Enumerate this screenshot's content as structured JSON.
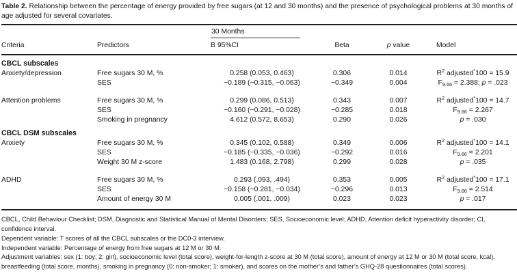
{
  "title": {
    "label": "Table 2.",
    "text": "Relationship between the percentage of energy provided by free sugars (at 12 and 30 months) and the presence of psychological problems at 30 months of age adjusted for several covariates."
  },
  "table": {
    "span_header": "30 Months",
    "columns": {
      "criteria": "Criteria",
      "predictors": "Predictors",
      "b_ci": "B 95%CI",
      "beta": "Beta",
      "p_italic": "p",
      "p_rest": " value",
      "model": "Model"
    },
    "sections": [
      {
        "title": "CBCL subscales",
        "groups": [
          {
            "criteria": "Anxiety/depression",
            "rows": [
              {
                "predictor": "Free sugars 30 M, %",
                "b": "0.258 (0.053, 0.463)",
                "beta": "0.306",
                "p": "0.014"
              },
              {
                "predictor": "SES",
                "b": "−0.189 (−0.315, −0.063)",
                "beta": "−0.349",
                "p": "0.004"
              }
            ],
            "model": [
              "R^{2} adjusted^{*}100 = 15.9",
              "F_{9.66} = 2.388; ~p~ = .023"
            ]
          },
          {
            "criteria": "Attention problems",
            "rows": [
              {
                "predictor": "Free sugars 30 M, %",
                "b": "0.299 (0.086, 0.513)",
                "beta": "0.343",
                "p": "0.007"
              },
              {
                "predictor": "SES",
                "b": "−0.160 (−0.291, −0.028)",
                "beta": "−0.285",
                "p": "0.018"
              },
              {
                "predictor": "Smoking in pregnancy",
                "b": "4.612 (0.572, 8.653)",
                "beta": "0.290",
                "p": "0.026"
              }
            ],
            "model": [
              "R^{2} adjusted^{*}100 = 14.7",
              "F_{9.66} = 2.267",
              "~p~ = .030"
            ]
          }
        ]
      },
      {
        "title": "CBCL DSM subscales",
        "groups": [
          {
            "criteria": "Anxiety",
            "rows": [
              {
                "predictor": "Free sugars 30 M, %",
                "b": "0.345 (0.102, 0.588)",
                "beta": "0.349",
                "p": "0.006"
              },
              {
                "predictor": "SES",
                "b": "−0.185 (−0.335, −0.036)",
                "beta": "−0.292",
                "p": "0.016"
              },
              {
                "predictor": "Weight 30 M z-score",
                "b": "1.483 (0.168, 2.798)",
                "beta": "0.299",
                "p": "0.028"
              }
            ],
            "model": [
              "R^{2} adjusted^{*}100 = 14.1",
              "F_{9.66} = 2.201",
              "~p~ = .035"
            ]
          },
          {
            "criteria": "ADHD",
            "rows": [
              {
                "predictor": "Free sugars 30 M, %",
                "b": "0.293 (.093, .494)",
                "beta": "0.353",
                "p": "0.005"
              },
              {
                "predictor": "SES",
                "b": "−0.158 (−0.281, −0.034)",
                "beta": "−0.296",
                "p": "0.013"
              },
              {
                "predictor": "Amount of energy 30 M",
                "b": "0.005 (.001, .009)",
                "beta": "0.023",
                "p": "0.023"
              }
            ],
            "model": [
              "R^{2} adjusted^{*}100 = 17.1",
              "F_{9.66} = 2.514",
              "~p~ = .017"
            ]
          }
        ]
      }
    ]
  },
  "footnotes": [
    "CBCL, Child Behaviour Checklist; DSM, Diagnostic and Statistical Manual of Mental Disorders; SES, Socioeconomic level; ADHD, Attention deficit hyperactivity disorder; CI, confidence interval.",
    "Dependent variable: T scores of all the CBCL subscales or the DC0-3 interview.",
    "Independent variable: Percentage of energy from free sugars at 12 M or 30 M.",
    "Adjustment variables: sex (1: boy; 2: girl), socioeconomic level (total score), weight-for-length z-score at 30 M (total score), amount of energy at 12 M or 30 M (total score, kcal), breastfeeding (total score, months), smoking in pregnancy (0: non-smoker; 1: smoker), and scores on the mother’s and father’s GHQ-28 questionnaires (total scores)."
  ]
}
